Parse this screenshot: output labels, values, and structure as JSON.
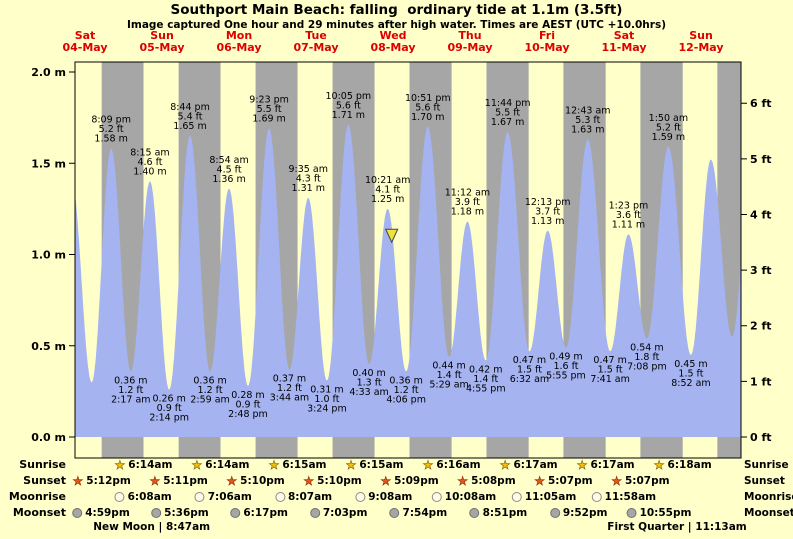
{
  "title": "Southport Main Beach: falling  ordinary tide at 1.1m (3.5ft)",
  "subtitle": "Image captured One hour and 29 minutes after high water. Times are AEST (UTC +10.0hrs)",
  "days": [
    {
      "name": "Sat",
      "date": "04-May"
    },
    {
      "name": "Sun",
      "date": "05-May"
    },
    {
      "name": "Mon",
      "date": "06-May"
    },
    {
      "name": "Tue",
      "date": "07-May"
    },
    {
      "name": "Wed",
      "date": "08-May"
    },
    {
      "name": "Thu",
      "date": "09-May"
    },
    {
      "name": "Fri",
      "date": "10-May"
    },
    {
      "name": "Sat",
      "date": "11-May"
    },
    {
      "name": "Sun",
      "date": "12-May"
    }
  ],
  "axis": {
    "left_ticks": [
      {
        "value": 0.0,
        "label": "0.0 m"
      },
      {
        "value": 0.5,
        "label": "0.5 m"
      },
      {
        "value": 1.0,
        "label": "1.0 m"
      },
      {
        "value": 1.5,
        "label": "1.5 m"
      },
      {
        "value": 2.0,
        "label": "2.0 m"
      }
    ],
    "right_ticks": [
      {
        "value_ft": 0,
        "label": "0 ft"
      },
      {
        "value_ft": 1,
        "label": "1 ft"
      },
      {
        "value_ft": 2,
        "label": "2 ft"
      },
      {
        "value_ft": 3,
        "label": "3 ft"
      },
      {
        "value_ft": 4,
        "label": "4 ft"
      },
      {
        "value_ft": 5,
        "label": "5 ft"
      },
      {
        "value_ft": 6,
        "label": "6 ft"
      }
    ]
  },
  "chart_data": {
    "type": "area",
    "title": "Southport Main Beach tide heights",
    "ylabel_left": "m",
    "ylabel_right": "ft",
    "ylim_m": [
      0,
      2.05
    ],
    "current_tide_m": 1.1,
    "current_tide_ft": 3.5,
    "events": [
      {
        "day": 0,
        "time": "7:45 am",
        "height_m": 1.42,
        "kind": "high",
        "labeled": false,
        "estimated": true
      },
      {
        "day": 0,
        "time": "2:05 pm",
        "height_m": 0.3,
        "kind": "low",
        "labeled": false,
        "estimated": true
      },
      {
        "day": 0,
        "time": "8:09 pm",
        "height_m": 1.58,
        "height_ft": 5.2,
        "kind": "high"
      },
      {
        "day": 1,
        "time": "2:17 am",
        "height_m": 0.36,
        "height_ft": 1.2,
        "kind": "low"
      },
      {
        "day": 1,
        "time": "8:15 am",
        "height_m": 1.4,
        "height_ft": 4.6,
        "kind": "high"
      },
      {
        "day": 1,
        "time": "2:14 pm",
        "height_m": 0.26,
        "height_ft": 0.9,
        "kind": "low"
      },
      {
        "day": 1,
        "time": "8:44 pm",
        "height_m": 1.65,
        "height_ft": 5.4,
        "kind": "high"
      },
      {
        "day": 2,
        "time": "2:59 am",
        "height_m": 0.36,
        "height_ft": 1.2,
        "kind": "low"
      },
      {
        "day": 2,
        "time": "8:54 am",
        "height_m": 1.36,
        "height_ft": 4.5,
        "kind": "high"
      },
      {
        "day": 2,
        "time": "2:48 pm",
        "height_m": 0.28,
        "height_ft": 0.9,
        "kind": "low"
      },
      {
        "day": 2,
        "time": "9:23 pm",
        "height_m": 1.69,
        "height_ft": 5.5,
        "kind": "high"
      },
      {
        "day": 3,
        "time": "3:44 am",
        "height_m": 0.37,
        "height_ft": 1.2,
        "kind": "low"
      },
      {
        "day": 3,
        "time": "9:35 am",
        "height_m": 1.31,
        "height_ft": 4.3,
        "kind": "high"
      },
      {
        "day": 3,
        "time": "3:24 pm",
        "height_m": 0.31,
        "height_ft": 1.0,
        "kind": "low"
      },
      {
        "day": 3,
        "time": "10:05 pm",
        "height_m": 1.71,
        "height_ft": 5.6,
        "kind": "high"
      },
      {
        "day": 4,
        "time": "4:33 am",
        "height_m": 0.4,
        "height_ft": 1.3,
        "kind": "low"
      },
      {
        "day": 4,
        "time": "10:21 am",
        "height_m": 1.25,
        "height_ft": 4.1,
        "kind": "high",
        "marker": true
      },
      {
        "day": 4,
        "time": "4:06 pm",
        "height_m": 0.36,
        "height_ft": 1.2,
        "kind": "low"
      },
      {
        "day": 4,
        "time": "10:51 pm",
        "height_m": 1.7,
        "height_ft": 5.6,
        "kind": "high"
      },
      {
        "day": 5,
        "time": "5:29 am",
        "height_m": 0.44,
        "height_ft": 1.4,
        "kind": "low"
      },
      {
        "day": 5,
        "time": "11:12 am",
        "height_m": 1.18,
        "height_ft": 3.9,
        "kind": "high"
      },
      {
        "day": 5,
        "time": "4:55 pm",
        "height_m": 0.42,
        "height_ft": 1.4,
        "kind": "low"
      },
      {
        "day": 5,
        "time": "11:44 pm",
        "height_m": 1.67,
        "height_ft": 5.5,
        "kind": "high"
      },
      {
        "day": 6,
        "time": "6:32 am",
        "height_m": 0.47,
        "height_ft": 1.5,
        "kind": "low"
      },
      {
        "day": 6,
        "time": "12:13 pm",
        "height_m": 1.13,
        "height_ft": 3.7,
        "kind": "high"
      },
      {
        "day": 6,
        "time": "5:55 pm",
        "height_m": 0.49,
        "height_ft": 1.6,
        "kind": "low"
      },
      {
        "day": 7,
        "time": "12:43 am",
        "height_m": 1.63,
        "height_ft": 5.3,
        "kind": "high"
      },
      {
        "day": 7,
        "time": "7:41 am",
        "height_m": 0.47,
        "height_ft": 1.5,
        "kind": "low"
      },
      {
        "day": 7,
        "time": "1:23 pm",
        "height_m": 1.11,
        "height_ft": 3.6,
        "kind": "high"
      },
      {
        "day": 7,
        "time": "7:08 pm",
        "height_m": 0.54,
        "height_ft": 1.8,
        "kind": "low"
      },
      {
        "day": 8,
        "time": "1:50 am",
        "height_m": 1.59,
        "height_ft": 5.2,
        "kind": "high"
      },
      {
        "day": 8,
        "time": "8:52 am",
        "height_m": 0.45,
        "height_ft": 1.5,
        "kind": "low"
      },
      {
        "day": 8,
        "time": "3:05 pm",
        "height_m": 1.52,
        "kind": "high",
        "labeled": false,
        "estimated": true
      },
      {
        "day": 8,
        "time": "9:40 pm",
        "height_m": 0.55,
        "kind": "low",
        "labeled": false,
        "estimated": true
      },
      {
        "day": 9,
        "time": "3:55 am",
        "height_m": 1.55,
        "kind": "high",
        "labeled": false,
        "estimated": true
      }
    ],
    "extra_night_band": {
      "day": 8,
      "time": "5:06 pm",
      "estimated": true
    }
  },
  "sun_moon": {
    "row_labels": [
      "Sunrise",
      "Sunset",
      "Moonrise",
      "Moonset"
    ],
    "sunrise": [
      {
        "day": 1,
        "time": "6:14am"
      },
      {
        "day": 2,
        "time": "6:14am"
      },
      {
        "day": 3,
        "time": "6:15am"
      },
      {
        "day": 4,
        "time": "6:15am"
      },
      {
        "day": 5,
        "time": "6:16am"
      },
      {
        "day": 6,
        "time": "6:17am"
      },
      {
        "day": 7,
        "time": "6:17am"
      },
      {
        "day": 8,
        "time": "6:18am"
      }
    ],
    "sunset": [
      {
        "day": 0,
        "time": "5:12pm"
      },
      {
        "day": 1,
        "time": "5:11pm"
      },
      {
        "day": 2,
        "time": "5:10pm"
      },
      {
        "day": 3,
        "time": "5:10pm"
      },
      {
        "day": 4,
        "time": "5:09pm"
      },
      {
        "day": 5,
        "time": "5:08pm"
      },
      {
        "day": 6,
        "time": "5:07pm"
      },
      {
        "day": 7,
        "time": "5:07pm"
      }
    ],
    "moonrise": [
      {
        "day": 1,
        "time": "6:08am"
      },
      {
        "day": 2,
        "time": "7:06am"
      },
      {
        "day": 3,
        "time": "8:07am"
      },
      {
        "day": 4,
        "time": "9:08am"
      },
      {
        "day": 5,
        "time": "10:08am"
      },
      {
        "day": 6,
        "time": "11:05am"
      },
      {
        "day": 7,
        "time": "11:58am"
      }
    ],
    "moonset": [
      {
        "day": 0,
        "time": "4:59pm"
      },
      {
        "day": 1,
        "time": "5:36pm"
      },
      {
        "day": 2,
        "time": "6:17pm"
      },
      {
        "day": 3,
        "time": "7:03pm"
      },
      {
        "day": 4,
        "time": "7:54pm"
      },
      {
        "day": 5,
        "time": "8:51pm"
      },
      {
        "day": 6,
        "time": "9:52pm"
      },
      {
        "day": 7,
        "time": "10:55pm"
      }
    ],
    "phases": [
      {
        "day": 1,
        "time": "8:47am",
        "label": "New Moon | 8:47am"
      },
      {
        "day": 8,
        "time": "11:13am",
        "label": "First Quarter | 11:13am"
      }
    ]
  },
  "colors": {
    "background": "#ffffc9",
    "night_band": "#a6a6a6",
    "tide_fill": "#a5b3f0",
    "day_label": "#dd0000",
    "sunrise_star": "#f2c011",
    "sunset_star": "#e2571d",
    "moon_light": "#fffbe6",
    "moon_dark": "#a6a6a6",
    "marker": "#efe23b"
  }
}
